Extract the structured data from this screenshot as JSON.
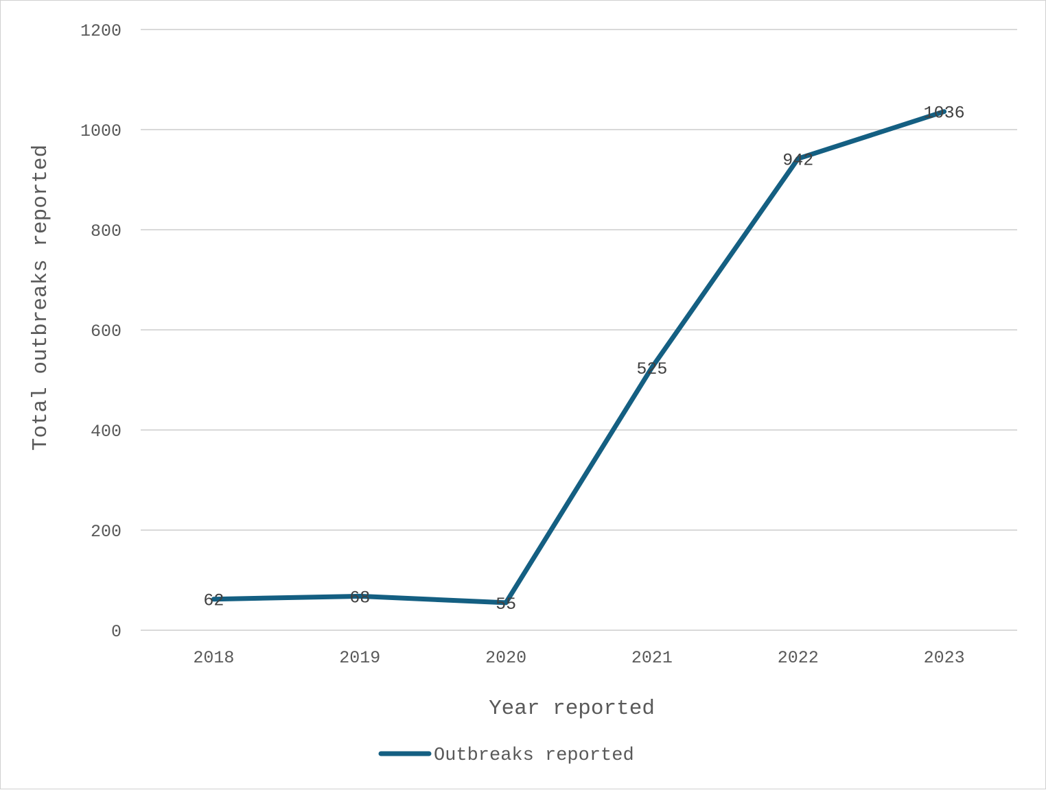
{
  "chart_data": {
    "type": "line",
    "categories": [
      "2018",
      "2019",
      "2020",
      "2021",
      "2022",
      "2023"
    ],
    "series": [
      {
        "name": "Outbreaks reported",
        "values": [
          62,
          68,
          55,
          525,
          942,
          1036
        ],
        "color": "#145f82"
      }
    ],
    "data_labels": [
      "62",
      "68",
      "55",
      "525",
      "942",
      "1036"
    ],
    "xlabel": "Year reported",
    "ylabel": "Total outbreaks reported",
    "ylim": [
      0,
      1200
    ],
    "yticks": [
      0,
      200,
      400,
      600,
      800,
      1000,
      1200
    ],
    "grid": true,
    "legend_position": "bottom"
  }
}
